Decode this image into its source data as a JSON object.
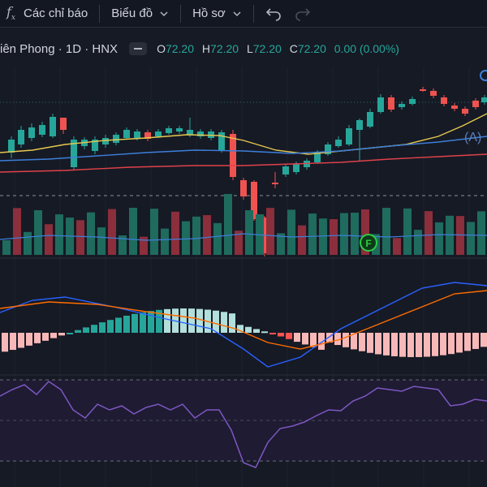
{
  "toolbar": {
    "indicators_label": "Các chỉ báo",
    "chart_label": "Biểu đồ",
    "profile_label": "Hồ sơ"
  },
  "legend": {
    "symbol_title": "iên Phong · 1D · HNX",
    "open_key": "O",
    "open_val": "72.20",
    "high_key": "H",
    "high_val": "72.20",
    "low_key": "L",
    "low_val": "72.20",
    "close_key": "C",
    "close_val": "72.20",
    "change": "0.00 (0.00%)"
  },
  "markers": {
    "a_label": "(A)",
    "f_label": "F"
  },
  "colors": {
    "up": "#26a69a",
    "down": "#ef5350",
    "ma_yellow": "#e6c84e",
    "ma_blue": "#3d7fd9",
    "ma_red": "#e0424a",
    "rsi": "#7e57c2"
  }
}
